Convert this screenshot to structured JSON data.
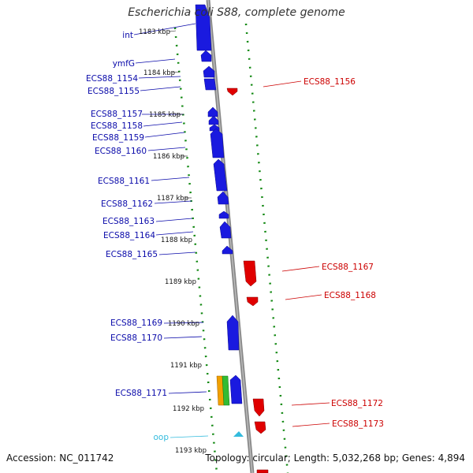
{
  "title": "Escherichia coli S88, complete genome",
  "footer": {
    "accession": "Accession: NC_011742",
    "summary": "Topology: circular; Length: 5,032,268 bp; Genes: 4,894"
  },
  "colors": {
    "forward_gene": "#1a1adf",
    "reverse_gene": "#e00000",
    "ori": "#33bbdd",
    "tick": "#118811",
    "backbone": "#888888",
    "rna_orange": "#f0a000",
    "rna_green": "#33bb33"
  },
  "ruler": [
    {
      "label": "1183 kbp"
    },
    {
      "label": "1184 kbp"
    },
    {
      "label": "1185 kbp"
    },
    {
      "label": "1186 kbp"
    },
    {
      "label": "1187 kbp"
    },
    {
      "label": "1188 kbp"
    },
    {
      "label": "1189 kbp"
    },
    {
      "label": "1190 kbp"
    },
    {
      "label": "1191 kbp"
    },
    {
      "label": "1192 kbp"
    },
    {
      "label": "1193 kbp"
    }
  ],
  "genes_left": [
    {
      "label": "int"
    },
    {
      "label": "ymfG"
    },
    {
      "label": "ECS88_1154"
    },
    {
      "label": "ECS88_1155"
    },
    {
      "label": "ECS88_1157"
    },
    {
      "label": "ECS88_1158"
    },
    {
      "label": "ECS88_1159"
    },
    {
      "label": "ECS88_1160"
    },
    {
      "label": "ECS88_1161"
    },
    {
      "label": "ECS88_1162"
    },
    {
      "label": "ECS88_1163"
    },
    {
      "label": "ECS88_1164"
    },
    {
      "label": "ECS88_1165"
    },
    {
      "label": "ECS88_1169"
    },
    {
      "label": "ECS88_1170"
    },
    {
      "label": "ECS88_1171"
    },
    {
      "label": "oop"
    }
  ],
  "genes_right": [
    {
      "label": "ECS88_1156"
    },
    {
      "label": "ECS88_1167"
    },
    {
      "label": "ECS88_1168"
    },
    {
      "label": "ECS88_1172"
    },
    {
      "label": "ECS88_1173"
    }
  ]
}
